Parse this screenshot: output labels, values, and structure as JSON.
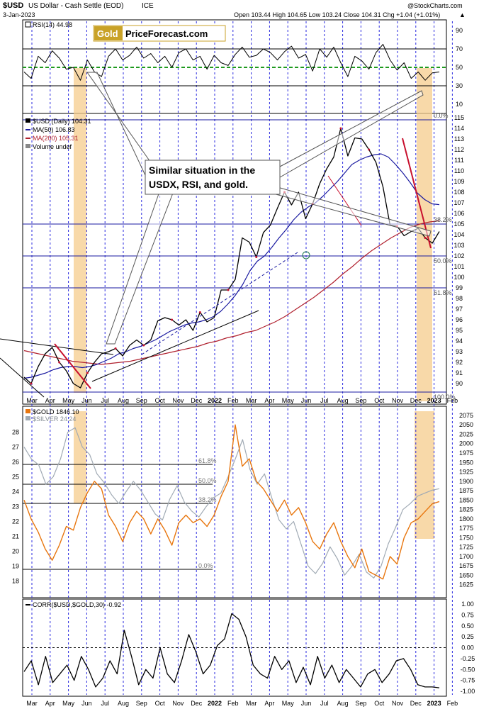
{
  "header": {
    "symbol": "$USD",
    "name": "US Dollar - Cash Settle (EOD)",
    "exchange": "ICE",
    "date": "3-Jan-2023",
    "ohlc": "Open 103.44  High 104.65  Low 103.24  Close 104.31  Chg +1.04 (+1.01%)",
    "chg_arrow": "▲",
    "watermark": "@StockCharts.com"
  },
  "logo": {
    "part1": "Gold",
    "part2": "PriceForecast.com"
  },
  "annotation": {
    "line1": "Similar situation in the",
    "line2": "USDX, RSI, and gold."
  },
  "colors": {
    "usd": "#000000",
    "ma50": "#1a1aa0",
    "ma200": "#b0202e",
    "gold": "#e8760e",
    "silver": "#a0aab4",
    "corr": "#000000",
    "band": "#f6cc8c",
    "grid": "#2a2adf",
    "rsi50": "#1e9a1e",
    "redline": "#c8102e"
  },
  "chart_data": [
    {
      "type": "line",
      "title": "RSI(14) 44.98",
      "label": "RSI(14) 44.98",
      "ylim": [
        0,
        100
      ],
      "yticks": [
        90,
        70,
        50,
        30,
        10
      ],
      "reference_lines": [
        70,
        50,
        30
      ],
      "series": [
        {
          "name": "RSI(14)",
          "values": [
            45,
            38,
            62,
            55,
            68,
            60,
            48,
            50,
            36,
            58,
            45,
            40,
            62,
            70,
            58,
            63,
            72,
            60,
            65,
            55,
            62,
            50,
            66,
            70,
            58,
            62,
            48,
            63,
            55,
            52,
            64,
            72,
            61,
            63,
            70,
            66,
            58,
            67,
            73,
            60,
            64,
            46,
            70,
            61,
            72,
            55,
            40,
            62,
            57,
            48,
            66,
            75,
            58,
            47,
            55,
            38,
            45,
            36,
            44,
            45
          ]
        }
      ]
    },
    {
      "type": "line",
      "title": "US Dollar - Cash Settle (EOD)",
      "ylim": [
        89,
        115
      ],
      "yticks": [
        115,
        114,
        113,
        112,
        111,
        110,
        109,
        108,
        107,
        106,
        105,
        104,
        103,
        102,
        101,
        100,
        99,
        98,
        97,
        96,
        95,
        94,
        93,
        92,
        91,
        90
      ],
      "legend": [
        {
          "name": "$USD (Daily) 104.31"
        },
        {
          "name": "MA(50) 106.83"
        },
        {
          "name": "MA(200) 105.31"
        },
        {
          "name": "Volume undef"
        }
      ],
      "fib_levels": [
        {
          "label": "0.0%",
          "value": 114.8
        },
        {
          "label": "38.2%",
          "value": 105.0
        },
        {
          "label": "50.0%",
          "value": 102.0
        },
        {
          "label": "61.8%",
          "value": 99.0
        },
        {
          "label": "100.0%",
          "value": 89.2
        }
      ],
      "series": [
        {
          "name": "$USD",
          "values": [
            90.6,
            90.0,
            91.6,
            92.8,
            93.4,
            92.0,
            91.2,
            90.0,
            89.6,
            91.0,
            92.0,
            92.8,
            93.0,
            93.3,
            92.6,
            93.6,
            94.1,
            93.6,
            94.1,
            95.9,
            96.2,
            96.0,
            95.5,
            96.0,
            95.0,
            96.7,
            95.8,
            96.2,
            98.8,
            98.8,
            99.8,
            103.7,
            103.3,
            101.9,
            104.2,
            104.9,
            106.5,
            108.0,
            106.8,
            108.0,
            105.5,
            106.9,
            108.8,
            110.2,
            111.3,
            114.0,
            111.4,
            113.1,
            113.0,
            112.0,
            110.8,
            108.5,
            104.9,
            104.8,
            103.9,
            104.3,
            104.6,
            103.7,
            103.2,
            104.3
          ]
        },
        {
          "name": "MA(50)",
          "values": [
            90.5,
            90.6,
            90.8,
            91.0,
            91.3,
            91.5,
            91.6,
            91.6,
            91.5,
            91.6,
            91.8,
            92.1,
            92.4,
            92.8,
            93.0,
            93.3,
            93.5,
            93.8,
            94.1,
            94.5,
            94.9,
            95.2,
            95.5,
            95.7,
            95.8,
            96.0,
            96.3,
            96.8,
            97.5,
            98.3,
            99.3,
            100.6,
            101.5,
            102.0,
            102.8,
            103.7,
            104.5,
            105.4,
            106.1,
            106.6,
            107.0,
            107.6,
            108.3,
            109.0,
            109.8,
            110.6,
            111.0,
            111.3,
            111.5,
            111.6,
            111.3,
            110.6,
            109.8,
            108.9,
            107.9,
            107.3,
            106.9,
            106.83
          ]
        },
        {
          "name": "MA(200)",
          "values": [
            93.1,
            92.9,
            92.7,
            92.5,
            92.3,
            92.1,
            92.0,
            91.9,
            91.8,
            91.9,
            92.0,
            92.1,
            92.3,
            92.5,
            92.7,
            92.9,
            93.1,
            93.3,
            93.5,
            93.8,
            94.0,
            94.3,
            94.5,
            94.8,
            95.0,
            95.4,
            95.8,
            96.3,
            96.9,
            97.5,
            98.1,
            98.8,
            99.5,
            100.3,
            101.0,
            101.8,
            102.5,
            103.1,
            103.7,
            104.2,
            104.7,
            105.0,
            105.2,
            105.31
          ]
        }
      ]
    },
    {
      "type": "line",
      "title": "$GOLD 1846.10",
      "legend": [
        {
          "name": "$GOLD 1846.10"
        },
        {
          "name": "$SILVER 24.24"
        }
      ],
      "ylim_right": [
        1615,
        2090
      ],
      "yticks_right": [
        2075,
        2050,
        2025,
        2000,
        1975,
        1950,
        1925,
        1900,
        1875,
        1850,
        1825,
        1800,
        1775,
        1750,
        1725,
        1700,
        1675,
        1650,
        1625
      ],
      "ylim_left": [
        17.5,
        29.5
      ],
      "yticks_left": [
        28,
        27,
        26,
        25,
        24,
        23,
        22,
        21,
        20,
        19,
        18
      ],
      "fib_levels": [
        {
          "label": "61.8%"
        },
        {
          "label": "50.0%"
        },
        {
          "label": "38.2%"
        },
        {
          "label": "0.0%"
        }
      ],
      "series": [
        {
          "name": "$GOLD",
          "values": [
            1850,
            1800,
            1765,
            1720,
            1690,
            1730,
            1780,
            1770,
            1830,
            1870,
            1900,
            1880,
            1810,
            1780,
            1740,
            1790,
            1820,
            1800,
            1760,
            1800,
            1770,
            1730,
            1790,
            1810,
            1790,
            1800,
            1780,
            1810,
            1860,
            1900,
            2050,
            1940,
            1960,
            1900,
            1880,
            1850,
            1820,
            1850,
            1810,
            1830,
            1790,
            1740,
            1720,
            1760,
            1790,
            1740,
            1700,
            1670,
            1720,
            1660,
            1650,
            1640,
            1700,
            1680,
            1750,
            1790,
            1800,
            1820,
            1840,
            1846
          ]
        },
        {
          "name": "$SILVER",
          "values": [
            27.0,
            26.2,
            25.8,
            24.5,
            25.0,
            26.2,
            28.0,
            28.3,
            27.0,
            26.5,
            25.2,
            24.6,
            23.8,
            23.2,
            24.0,
            24.7,
            24.1,
            23.3,
            22.5,
            22.1,
            23.5,
            24.4,
            23.3,
            22.7,
            22.3,
            23.0,
            23.6,
            23.9,
            25.0,
            26.2,
            27.5,
            25.5,
            24.5,
            25.2,
            23.6,
            22.1,
            21.5,
            22.0,
            20.5,
            19.0,
            18.5,
            19.2,
            20.3,
            19.5,
            18.4,
            19.0,
            19.8,
            18.6,
            18.2,
            19.0,
            20.5,
            21.6,
            22.8,
            23.2,
            23.7,
            23.9,
            24.1,
            24.2
          ]
        }
      ]
    },
    {
      "type": "line",
      "title": "CORR($USD,$GOLD,30) -0.92",
      "ylim": [
        -1.0,
        1.0
      ],
      "yticks": [
        1.0,
        0.75,
        0.5,
        0.25,
        0.0,
        -0.25,
        -0.5,
        -0.75,
        -1.0
      ],
      "series": [
        {
          "name": "CORR($USD,$GOLD,30)",
          "values": [
            -0.55,
            -0.3,
            -0.85,
            -0.2,
            -0.8,
            -0.6,
            -0.4,
            -0.75,
            -0.2,
            -0.5,
            -0.9,
            -0.7,
            -0.3,
            -0.6,
            0.4,
            -0.2,
            -0.85,
            -0.5,
            -0.7,
            0.0,
            -0.6,
            -0.8,
            -0.3,
            0.3,
            -0.1,
            -0.6,
            -0.4,
            0.05,
            0.2,
            0.78,
            0.65,
            0.25,
            -0.4,
            -0.6,
            -0.7,
            -0.2,
            -0.5,
            -0.3,
            -0.8,
            -0.45,
            -0.85,
            -0.2,
            -0.7,
            -0.4,
            -0.8,
            -0.5,
            -0.7,
            -0.9,
            -0.6,
            -0.5,
            -0.8,
            -0.6,
            -0.3,
            -0.25,
            -0.5,
            -0.85,
            -0.9,
            -0.9,
            -0.92
          ]
        }
      ]
    }
  ],
  "x_axis": {
    "months_top": [
      "Mar",
      "Apr",
      "May",
      "Jun",
      "Jul",
      "Aug",
      "Sep",
      "Oct",
      "Nov",
      "Dec",
      "2022",
      "Feb",
      "Mar",
      "Apr",
      "May",
      "Jun",
      "Jul",
      "Aug",
      "Sep",
      "Oct",
      "Nov",
      "Dec",
      "2023",
      "Feb"
    ],
    "months_bottom": [
      "Mar",
      "Apr",
      "May",
      "Jun",
      "Jul",
      "Aug",
      "Sep",
      "Oct",
      "Nov",
      "Dec",
      "2022",
      "Feb",
      "Mar",
      "Apr",
      "May",
      "Jun",
      "Jul",
      "Aug",
      "Sep",
      "Oct",
      "Nov",
      "Dec",
      "2023",
      "Feb"
    ]
  }
}
